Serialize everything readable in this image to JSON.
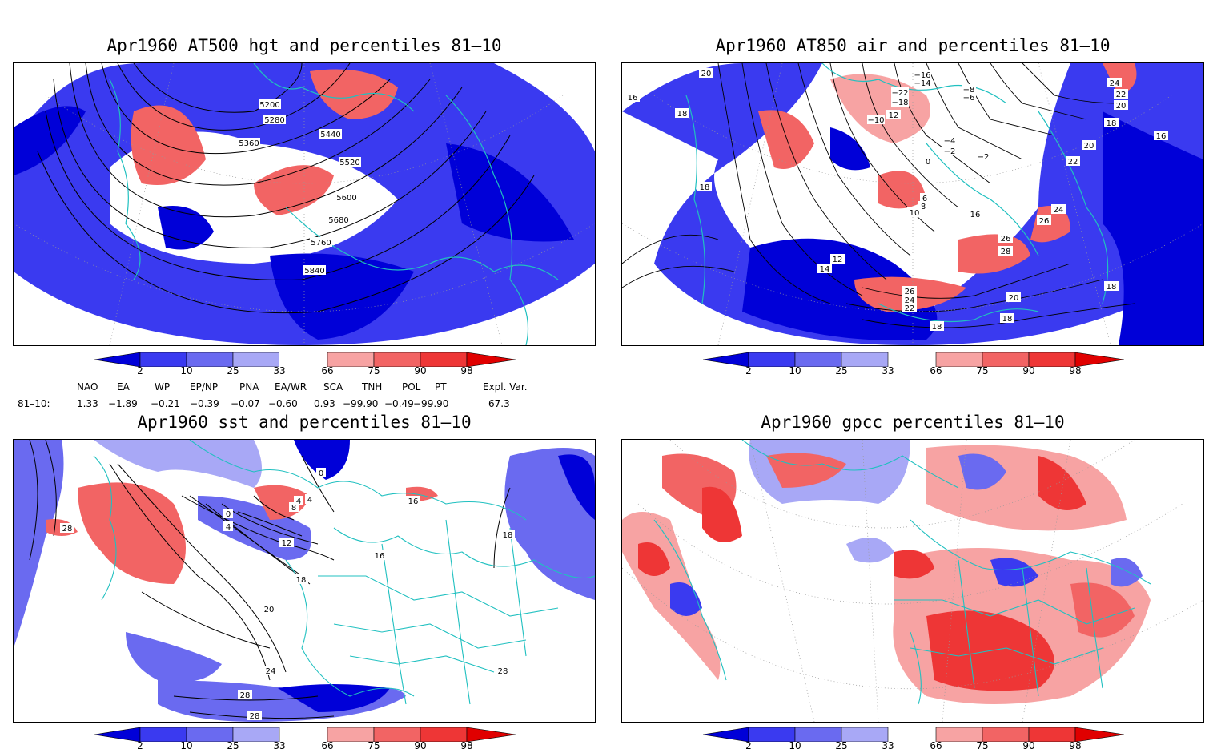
{
  "panels": [
    {
      "id": "p1",
      "title": "Apr1960 AT500 hgt and percentiles 81–10",
      "contour_labels": [
        "5200",
        "5280",
        "5360",
        "5440",
        "5520",
        "5600",
        "5680",
        "5760",
        "5840"
      ]
    },
    {
      "id": "p2",
      "title": "Apr1960 AT850 air and percentiles 81–10",
      "contour_labels": [
        "20",
        "−16",
        "−14",
        "−22",
        "−18",
        "−8",
        "−6",
        "−10",
        "12",
        "−4",
        "−2",
        "0",
        "−2",
        "18",
        "18",
        "16",
        "12",
        "14",
        "6",
        "8",
        "10",
        "16",
        "24",
        "26",
        "26",
        "28",
        "26",
        "24",
        "22",
        "20",
        "18",
        "18",
        "16",
        "24",
        "22",
        "20",
        "18",
        "20",
        "22",
        "18"
      ]
    },
    {
      "id": "p3",
      "title": "Apr1960 sst and percentiles 81–10",
      "contour_labels": [
        "0",
        "4",
        "8",
        "4",
        "12",
        "16",
        "0",
        "4",
        "16",
        "18",
        "20",
        "24",
        "28",
        "28",
        "28",
        "18",
        "28"
      ]
    },
    {
      "id": "p4",
      "title": "Apr1960 gpcc percentiles 81–10",
      "contour_labels": []
    }
  ],
  "colorbar": {
    "ticks": [
      "2",
      "10",
      "25",
      "33",
      "66",
      "75",
      "90",
      "98"
    ],
    "colors": {
      "lt2": "#0000d8",
      "b10": "#3a3af0",
      "b25": "#6a6af0",
      "b33": "#a8a8f6",
      "w": "#ffffff",
      "r66": "#f7a3a3",
      "r75": "#f26464",
      "r90": "#ee3636",
      "gt98": "#e00000"
    }
  },
  "indices": {
    "headers": [
      "NAO",
      "EA",
      "WP",
      "EP/NP",
      "PNA",
      "EA/WR",
      "SCA",
      "TNH",
      "POL",
      "PT",
      "Expl. Var."
    ],
    "row_label": "81–10:",
    "values": [
      "1.33",
      "−1.89",
      "−0.21",
      "−0.39",
      "−0.07",
      "−0.60",
      "0.93",
      "−99.90",
      "−0.49",
      "−99.90",
      "67.3"
    ]
  },
  "map_colors": {
    "coast": "#20c0c0",
    "contour": "#000000",
    "grid": "#999999"
  }
}
